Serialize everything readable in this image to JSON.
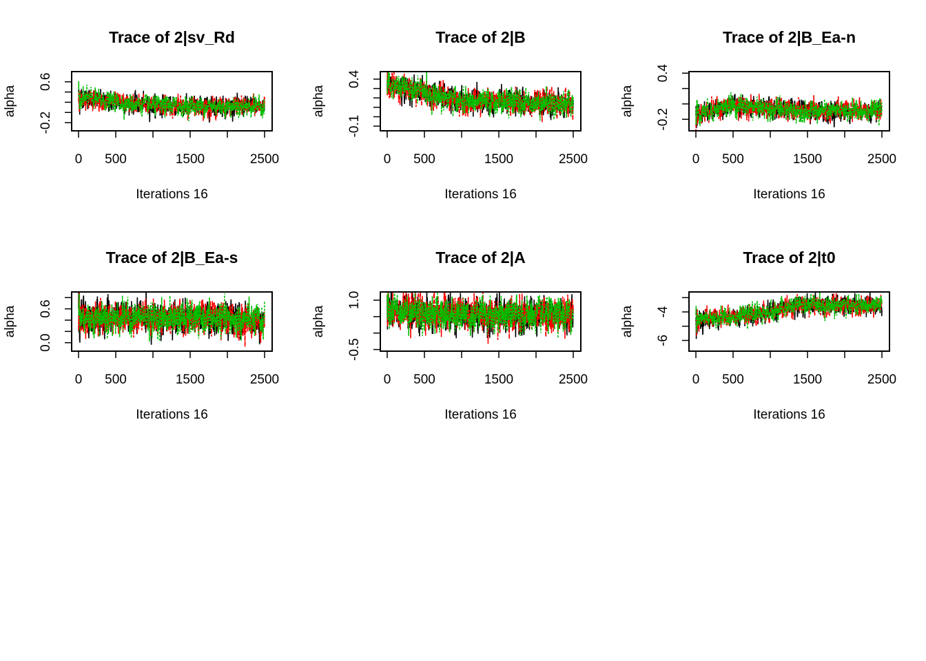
{
  "chart_data": [
    {
      "type": "line",
      "title": "Trace of 2|sv_Rd",
      "xlabel": "Iterations 16",
      "ylabel": "alpha",
      "xlim": [
        0,
        2500
      ],
      "ylim": [
        -0.36,
        0.8
      ],
      "xticks": [
        0,
        500,
        1000,
        1500,
        2000,
        2500
      ],
      "xticklabels": [
        "0",
        "500",
        "",
        "1500",
        "",
        "2500"
      ],
      "yticks": [
        -0.2,
        0.0,
        0.2,
        0.4,
        0.6
      ],
      "yticklabels": [
        "-0.2",
        "",
        "",
        "",
        "0.6"
      ],
      "chains": 3,
      "trend": [
        [
          0,
          0.3
        ],
        [
          400,
          0.22
        ],
        [
          1000,
          0.13
        ],
        [
          2500,
          0.12
        ]
      ],
      "spread": 0.07
    },
    {
      "type": "line",
      "title": "Trace of 2|B",
      "xlabel": "Iterations 16",
      "ylabel": "alpha",
      "xlim": [
        0,
        2500
      ],
      "ylim": [
        -0.15,
        0.48
      ],
      "xticks": [
        0,
        500,
        1000,
        1500,
        2000,
        2500
      ],
      "xticklabels": [
        "0",
        "500",
        "",
        "1500",
        "",
        "2500"
      ],
      "yticks": [
        -0.1,
        0.0,
        0.1,
        0.2,
        0.3,
        0.4
      ],
      "yticklabels": [
        "-0.1",
        "",
        "",
        "",
        "",
        "0.4"
      ],
      "chains": 3,
      "trend": [
        [
          0,
          0.33
        ],
        [
          400,
          0.28
        ],
        [
          1000,
          0.16
        ],
        [
          2500,
          0.14
        ]
      ],
      "spread": 0.05
    },
    {
      "type": "line",
      "title": "Trace of 2|B_Ea-n",
      "xlabel": "Iterations 16",
      "ylabel": "alpha",
      "xlim": [
        0,
        2500
      ],
      "ylim": [
        -0.35,
        0.42
      ],
      "xticks": [
        0,
        500,
        1000,
        1500,
        2000,
        2500
      ],
      "xticklabels": [
        "0",
        "500",
        "",
        "1500",
        "",
        "2500"
      ],
      "yticks": [
        -0.2,
        0.0,
        0.2,
        0.4
      ],
      "yticklabels": [
        "-0.2",
        "",
        "",
        "0.4"
      ],
      "chains": 3,
      "trend": [
        [
          0,
          -0.12
        ],
        [
          500,
          -0.02
        ],
        [
          1500,
          -0.1
        ],
        [
          2500,
          -0.08
        ]
      ],
      "spread": 0.05
    },
    {
      "type": "line",
      "title": "Trace of 2|B_Ea-s",
      "xlabel": "Iterations 16",
      "ylabel": "alpha",
      "xlim": [
        0,
        2500
      ],
      "ylim": [
        -0.15,
        0.9
      ],
      "xticks": [
        0,
        500,
        1000,
        1500,
        2000,
        2500
      ],
      "xticklabels": [
        "0",
        "500",
        "",
        "1500",
        "",
        "2500"
      ],
      "yticks": [
        0.0,
        0.2,
        0.4,
        0.6,
        0.8
      ],
      "yticklabels": [
        "0.0",
        "",
        "",
        "0.6",
        ""
      ],
      "chains": 3,
      "trend": [
        [
          0,
          0.45
        ],
        [
          1000,
          0.45
        ],
        [
          2500,
          0.38
        ]
      ],
      "spread": 0.11
    },
    {
      "type": "line",
      "title": "Trace of 2|A",
      "xlabel": "Iterations 16",
      "ylabel": "alpha",
      "xlim": [
        0,
        2500
      ],
      "ylim": [
        -0.55,
        1.25
      ],
      "xticks": [
        0,
        500,
        1000,
        1500,
        2000,
        2500
      ],
      "xticklabels": [
        "0",
        "500",
        "",
        "1500",
        "",
        "2500"
      ],
      "yticks": [
        -0.5,
        0.0,
        0.5,
        1.0
      ],
      "yticklabels": [
        "-0.5",
        "",
        "",
        "1.0"
      ],
      "chains": 3,
      "trend": [
        [
          0,
          0.75
        ],
        [
          500,
          0.6
        ],
        [
          2500,
          0.5
        ]
      ],
      "spread": 0.2
    },
    {
      "type": "line",
      "title": "Trace of 2|t0",
      "xlabel": "Iterations 16",
      "ylabel": "alpha",
      "xlim": [
        0,
        2500
      ],
      "ylim": [
        -6.75,
        -2.6
      ],
      "xticks": [
        0,
        500,
        1000,
        1500,
        2000,
        2500
      ],
      "xticklabels": [
        "0",
        "500",
        "",
        "1500",
        "",
        "2500"
      ],
      "yticks": [
        -6,
        -5,
        -4,
        -3
      ],
      "yticklabels": [
        "-6",
        "",
        "-4",
        ""
      ],
      "chains": 3,
      "trend": [
        [
          0,
          -4.6
        ],
        [
          500,
          -4.3
        ],
        [
          1000,
          -4.0
        ],
        [
          1400,
          -3.5
        ],
        [
          2500,
          -3.6
        ]
      ],
      "spread": 0.25
    }
  ],
  "colors": {
    "chain1": "#000000",
    "chain2": "#ff0000",
    "chain3": "#00c000"
  }
}
